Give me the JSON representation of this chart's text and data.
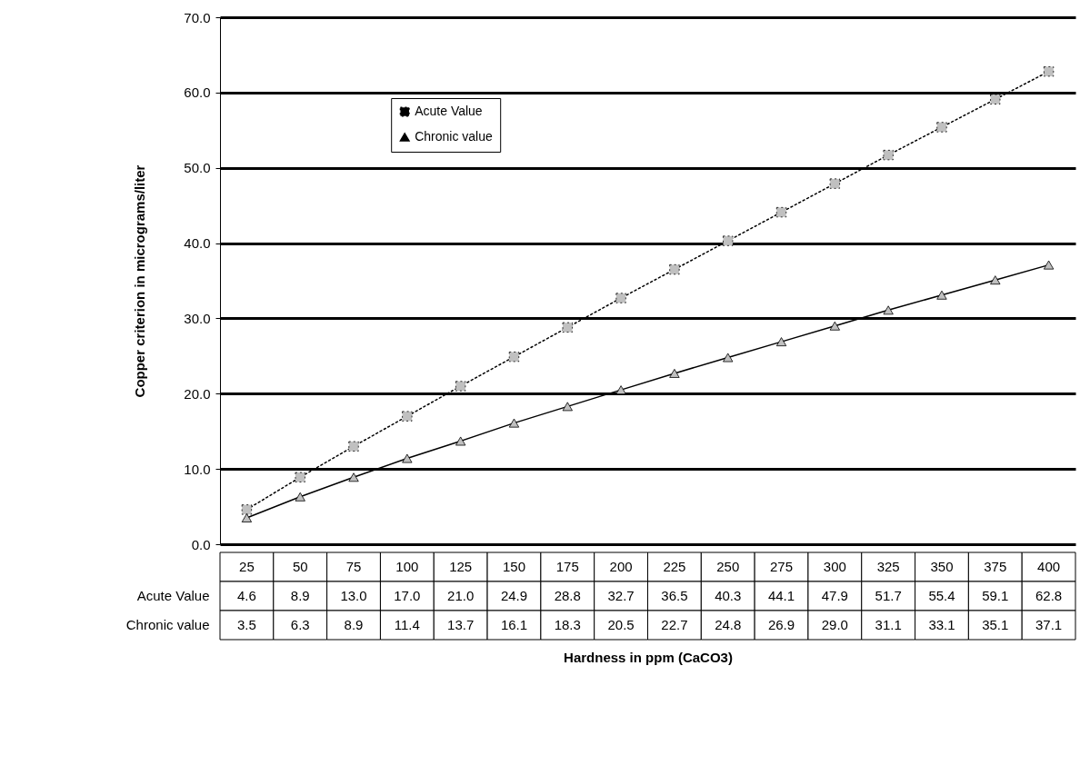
{
  "chart_data": {
    "type": "line",
    "annotations": [
      "Hardness in ppm (CaCO3)"
    ],
    "ylabel": "Copper criterion in micrograms/liter",
    "categories": [
      "25",
      "50",
      "75",
      "100",
      "125",
      "150",
      "175",
      "200",
      "225",
      "250",
      "275",
      "300",
      "325",
      "350",
      "375",
      "400"
    ],
    "series": [
      {
        "name": "Acute Value",
        "color": "#000000",
        "marker": "square",
        "line_style": "dotted",
        "values": [
          4.6,
          8.9,
          13.0,
          17.0,
          21.0,
          24.9,
          28.8,
          32.7,
          36.5,
          40.3,
          44.1,
          47.9,
          51.7,
          55.4,
          59.1,
          62.8
        ],
        "value_labels": [
          "4.6",
          "8.9",
          "13.0",
          "17.0",
          "21.0",
          "24.9",
          "28.8",
          "32.7",
          "36.5",
          "40.3",
          "44.1",
          "47.9",
          "51.7",
          "55.4",
          "59.1",
          "62.8"
        ]
      },
      {
        "name": "Chronic value",
        "color": "#000000",
        "marker": "triangle",
        "line_style": "solid",
        "values": [
          3.5,
          6.3,
          8.9,
          11.4,
          13.7,
          16.1,
          18.3,
          20.5,
          22.7,
          24.8,
          26.9,
          29.0,
          31.1,
          33.1,
          35.1,
          37.1
        ],
        "value_labels": [
          "3.5",
          "6.3",
          "8.9",
          "11.4",
          "13.7",
          "16.1",
          "18.3",
          "20.5",
          "22.7",
          "24.8",
          "26.9",
          "29.0",
          "31.1",
          "33.1",
          "35.1",
          "37.1"
        ]
      }
    ],
    "ylim": [
      0,
      70
    ],
    "yticks": [
      {
        "value": 0,
        "label": "0.0"
      },
      {
        "value": 10,
        "label": "10.0"
      },
      {
        "value": 20,
        "label": "20.0"
      },
      {
        "value": 30,
        "label": "30.0"
      },
      {
        "value": 40,
        "label": "40.0"
      },
      {
        "value": 50,
        "label": "50.0"
      },
      {
        "value": 60,
        "label": "60.0"
      },
      {
        "value": 70,
        "label": "70.0"
      }
    ],
    "grid": "y",
    "legend": "top left"
  }
}
